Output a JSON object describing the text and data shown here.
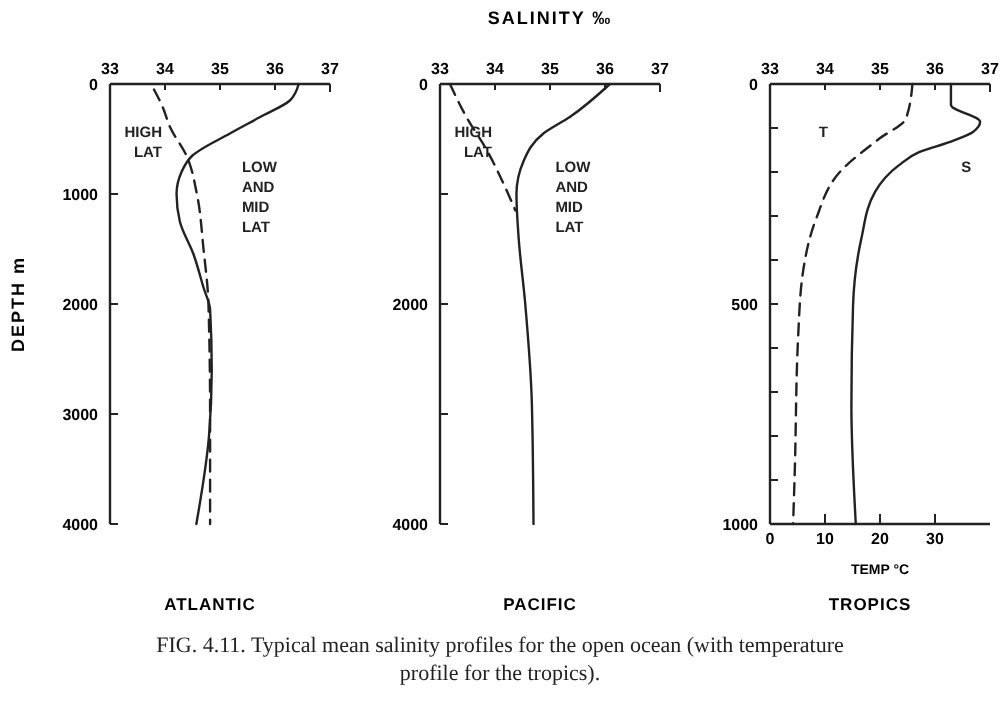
{
  "chart_data": [
    {
      "type": "line",
      "title": "ATLANTIC",
      "ylabel": "DEPTH m",
      "xlim": [
        33,
        37
      ],
      "xticks": [
        33,
        34,
        35,
        36,
        37
      ],
      "ylim": [
        4000,
        0
      ],
      "yticks": [
        0,
        1000,
        2000,
        3000,
        4000
      ],
      "series": [
        {
          "name": "LOW AND MID LAT",
          "color": "#222222",
          "line_style": "solid",
          "x": [
            36.43,
            36.27,
            35.73,
            35.18,
            34.5,
            34.3,
            34.21,
            34.27,
            34.52,
            34.7,
            34.82,
            34.85,
            34.8,
            34.57
          ],
          "values": [
            0,
            150,
            300,
            450,
            650,
            800,
            1000,
            1250,
            1550,
            1850,
            2050,
            2600,
            3200,
            4000
          ]
        },
        {
          "name": "HIGH LAT",
          "color": "#222222",
          "line_style": "dashed",
          "x": [
            33.8,
            33.95,
            34.1,
            34.39,
            34.58,
            34.7,
            34.79,
            34.82,
            34.82
          ],
          "values": [
            50,
            200,
            400,
            650,
            1000,
            1500,
            2000,
            3000,
            4000
          ]
        }
      ],
      "annotations": [
        "FIG. 4.11.   Typical mean salinity profiles for the open ocean (with temperature profile for the tropics)."
      ]
    },
    {
      "type": "line",
      "title": "PACIFIC",
      "xlabel": "SALINITY ‰",
      "xlim": [
        33,
        37
      ],
      "xticks": [
        33,
        34,
        35,
        36,
        37
      ],
      "ylim": [
        4000,
        0
      ],
      "yticks": [
        0,
        {
          "value": 1000,
          "label": null
        },
        2000,
        {
          "value": 3000,
          "label": null
        },
        4000
      ],
      "series": [
        {
          "name": "LOW AND MID LAT",
          "color": "#222222",
          "line_style": "solid",
          "x": [
            36.09,
            35.36,
            34.88,
            34.52,
            34.39,
            34.43,
            34.55,
            34.67,
            34.7
          ],
          "values": [
            0,
            300,
            450,
            700,
            1000,
            1400,
            2000,
            2900,
            4000
          ]
        },
        {
          "name": "HIGH LAT",
          "color": "#222222",
          "line_style": "dashed",
          "x": [
            33.18,
            33.48,
            33.85,
            34.15,
            34.37
          ],
          "values": [
            0,
            300,
            600,
            900,
            1150
          ]
        }
      ]
    },
    {
      "type": "line",
      "title": "TROPICS",
      "x2label": "TEMP °C",
      "xlim": [
        33,
        37
      ],
      "xticks": [
        33,
        34,
        35,
        36,
        37
      ],
      "x2lim": [
        0,
        40
      ],
      "x2ticks": [
        0,
        10,
        20,
        30
      ],
      "ylim": [
        1000,
        0
      ],
      "yticks": [
        0,
        {
          "value": 100,
          "label": null
        },
        {
          "value": 200,
          "label": null
        },
        {
          "value": 300,
          "label": null
        },
        {
          "value": 400,
          "label": null
        },
        500,
        {
          "value": 600,
          "label": null
        },
        {
          "value": 700,
          "label": null
        },
        {
          "value": 800,
          "label": null
        },
        {
          "value": 900,
          "label": null
        },
        1000
      ],
      "series": [
        {
          "name": "S",
          "color": "#222222",
          "line_style": "solid",
          "x": [
            36.29,
            36.29,
            36.82,
            36.69,
            36.26,
            35.71,
            35.34,
            34.91,
            34.66,
            34.51,
            34.48,
            34.56
          ],
          "values": [
            0,
            48,
            86,
            109,
            132,
            155,
            185,
            245,
            352,
            503,
            730,
            1000
          ]
        },
        {
          "name": "T",
          "color": "#222222",
          "line_style": "dashed",
          "axis": "x2",
          "x": [
            25.9,
            24.7,
            19.9,
            12.7,
            8.4,
            6,
            5.1,
            4.5,
            4.2
          ],
          "values": [
            0,
            79,
            124,
            200,
            306,
            427,
            579,
            882,
            1000
          ]
        }
      ]
    }
  ]
}
